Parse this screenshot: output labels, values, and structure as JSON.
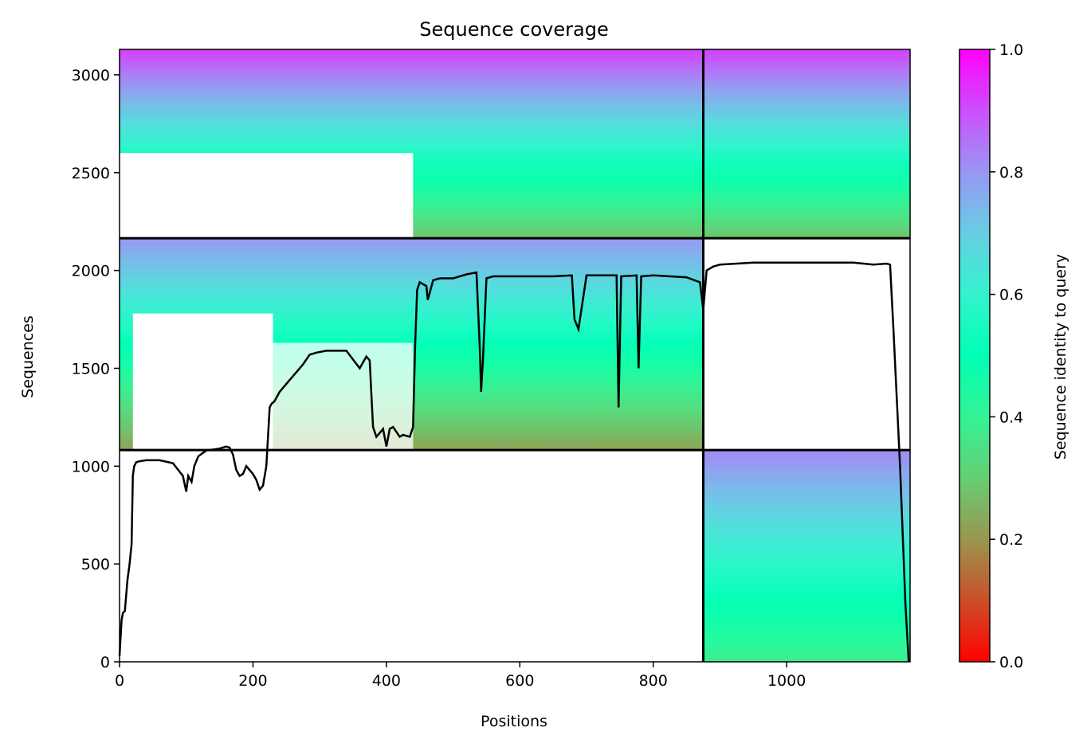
{
  "chart_data": {
    "type": "heatmap",
    "title": "Sequence coverage",
    "xlabel": "Positions",
    "ylabel": "Sequences",
    "xlim": [
      0,
      1185
    ],
    "ylim": [
      0,
      3130
    ],
    "x_ticks": [
      0,
      200,
      400,
      600,
      800,
      1000
    ],
    "y_ticks": [
      0,
      500,
      1000,
      1500,
      2000,
      2500,
      3000
    ],
    "grid": false,
    "colorbar": {
      "label": "Sequence identity to query",
      "colormap": "rainbow_r",
      "range": [
        0,
        1
      ],
      "ticks": [
        0.0,
        0.2,
        0.4,
        0.6,
        0.8,
        1.0
      ],
      "tick_labels": [
        "0.0",
        "0.2",
        "0.4",
        "0.6",
        "0.8",
        "1.0"
      ]
    },
    "block_boundaries": {
      "vertical_position": 875,
      "horizontal_sequences": [
        1082,
        2165
      ]
    },
    "coverage_blocks": [
      {
        "x_range": [
          875,
          1185
        ],
        "seq_range": [
          0,
          1082
        ],
        "identity_bottom": 0.38,
        "identity_top": 0.82
      },
      {
        "x_range": [
          0,
          875
        ],
        "seq_range": [
          1082,
          2165
        ],
        "identity_bottom": 0.22,
        "identity_top": 0.8
      },
      {
        "x_range": [
          0,
          1185
        ],
        "seq_range": [
          2165,
          3130
        ],
        "identity_bottom": 0.28,
        "identity_top": 0.92
      }
    ],
    "series": [
      {
        "x": [
          0,
          3,
          5,
          8,
          12,
          15,
          18,
          20,
          22,
          25,
          30,
          40,
          60,
          80,
          95,
          100,
          103,
          108,
          112,
          118,
          130,
          150,
          160,
          165,
          170,
          175,
          180,
          185,
          190,
          195,
          200,
          205,
          210,
          215,
          220,
          225,
          228,
          232,
          240,
          250,
          265,
          275,
          285,
          295,
          310,
          340,
          360,
          370,
          375,
          380,
          385,
          395,
          400,
          405,
          410,
          420,
          425,
          435,
          440,
          443,
          446,
          450,
          460,
          462,
          470,
          480,
          500,
          520,
          535,
          540,
          542,
          545,
          550,
          560,
          600,
          650,
          678,
          682,
          688,
          700,
          745,
          748,
          752,
          775,
          778,
          782,
          800,
          850,
          870,
          875,
          880,
          890,
          900,
          950,
          1000,
          1050,
          1100,
          1130,
          1150,
          1155,
          1160,
          1170,
          1178,
          1183
        ],
        "y": [
          30,
          210,
          250,
          260,
          420,
          500,
          600,
          950,
          1000,
          1020,
          1025,
          1030,
          1030,
          1015,
          950,
          870,
          950,
          920,
          1000,
          1050,
          1080,
          1090,
          1100,
          1095,
          1060,
          980,
          950,
          960,
          1000,
          980,
          960,
          930,
          880,
          900,
          1000,
          1300,
          1320,
          1330,
          1380,
          1420,
          1480,
          1520,
          1570,
          1580,
          1590,
          1590,
          1500,
          1560,
          1540,
          1200,
          1150,
          1190,
          1100,
          1190,
          1200,
          1150,
          1160,
          1150,
          1200,
          1600,
          1900,
          1940,
          1920,
          1850,
          1950,
          1960,
          1960,
          1980,
          1990,
          1600,
          1380,
          1560,
          1960,
          1970,
          1970,
          1970,
          1975,
          1750,
          1700,
          1975,
          1975,
          1300,
          1970,
          1975,
          1500,
          1970,
          1975,
          1965,
          1940,
          1800,
          2000,
          2020,
          2030,
          2040,
          2040,
          2040,
          2040,
          2030,
          2035,
          2030,
          1700,
          1000,
          300,
          0
        ]
      }
    ]
  }
}
